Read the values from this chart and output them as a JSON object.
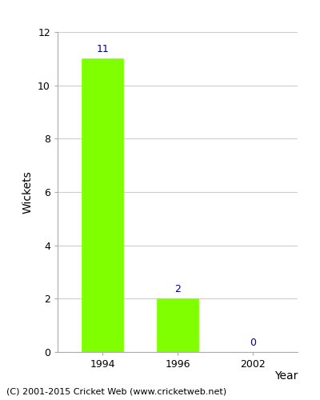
{
  "years": [
    "1994",
    "1996",
    "2002"
  ],
  "values": [
    11,
    2,
    0
  ],
  "bar_color": "#7FFF00",
  "bar_edge_color": "#7FFF00",
  "ylabel": "Wickets",
  "xlabel": "Year",
  "ylim": [
    0,
    12
  ],
  "yticks": [
    0,
    2,
    4,
    6,
    8,
    10,
    12
  ],
  "label_color": "#00008B",
  "label_fontsize": 9,
  "axis_label_fontsize": 10,
  "tick_fontsize": 9,
  "background_color": "#ffffff",
  "grid_color": "#cccccc",
  "footer_text": "(C) 2001-2015 Cricket Web (www.cricketweb.net)",
  "footer_fontsize": 8,
  "bar_width": 0.55
}
